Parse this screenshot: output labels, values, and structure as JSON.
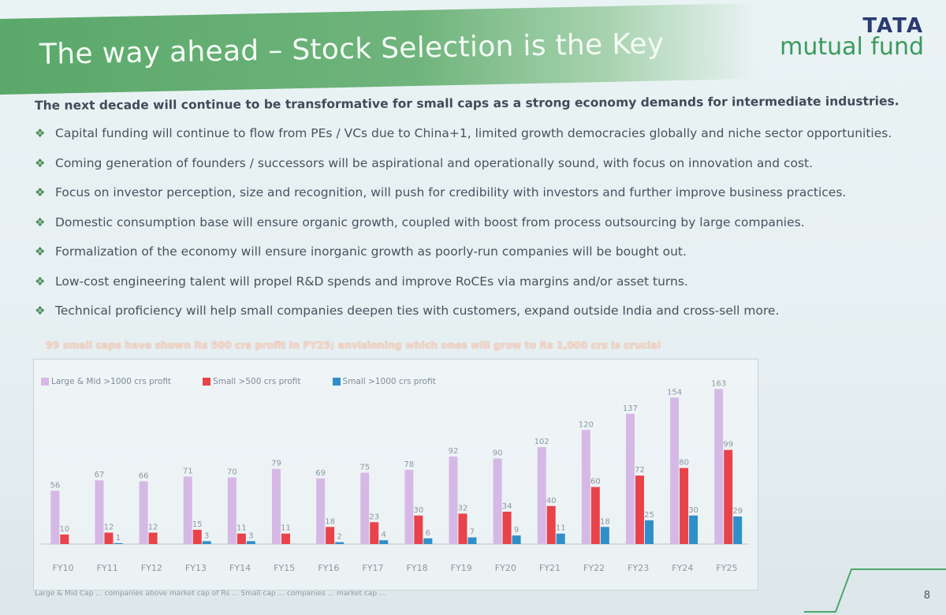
{
  "slide": {
    "title": "The way ahead – Stock Selection is the Key",
    "logo_top": "TATA",
    "logo_bottom": "mutual fund",
    "headline": "The next decade will continue to be transformative for small caps as a strong economy demands for intermediate industries.",
    "bullets": [
      "Capital funding will continue to flow from PEs / VCs due to China+1, limited growth democracies globally and niche sector opportunities.",
      "Coming generation of founders / successors will be aspirational and operationally sound, with focus on innovation and cost.",
      "Focus on investor perception, size and recognition, will push for credibility with investors and further improve business practices.",
      "Domestic consumption base will ensure organic growth, coupled with boost from process outsourcing by large companies.",
      "Formalization of the economy will ensure inorganic growth as poorly-run companies will be bought out.",
      "Low-cost engineering talent will propel R&D spends and improve RoCEs via margins and/or asset turns.",
      "Technical proficiency will help small companies deepen ties with customers, expand outside India and cross-sell more."
    ],
    "bullet_icon": "diamond-bullet-icon",
    "subhead": "99 small caps have shown Rs 500 crs profit in FY25; envisioning which ones will grow to Rs 1,000 crs is crucial",
    "footnote": "Large & Mid Cap ... companies above market cap of Rs ... Small cap ... companies ... market cap ...",
    "page_number": "8"
  },
  "colors": {
    "title_bar": "#5aa86a",
    "logo_blue": "#2a3a72",
    "logo_green": "#3a9a5c",
    "large_mid": "#d6b8e6",
    "small_500": "#e8434a",
    "small_1000": "#2f8fc9"
  },
  "chart_data": {
    "type": "bar",
    "categories": [
      "FY10",
      "FY11",
      "FY12",
      "FY13",
      "FY14",
      "FY15",
      "FY16",
      "FY17",
      "FY18",
      "FY19",
      "FY20",
      "FY21",
      "FY22",
      "FY23",
      "FY24",
      "FY25"
    ],
    "series": [
      {
        "name": "Large & Mid >1000 crs profit",
        "values": [
          56,
          67,
          66,
          71,
          70,
          79,
          69,
          75,
          78,
          92,
          90,
          102,
          120,
          137,
          154,
          163
        ]
      },
      {
        "name": "Small >500 crs profit",
        "values": [
          10,
          12,
          12,
          15,
          11,
          11,
          18,
          23,
          30,
          32,
          34,
          40,
          60,
          72,
          80,
          99
        ]
      },
      {
        "name": "Small >1000 crs profit",
        "values": [
          null,
          1,
          null,
          3,
          3,
          null,
          2,
          4,
          6,
          7,
          9,
          11,
          18,
          25,
          30,
          29
        ]
      }
    ],
    "xlabel": "",
    "ylabel": "",
    "ylim": [
      0,
      170
    ],
    "legend_position": "top-left",
    "grid": false
  }
}
